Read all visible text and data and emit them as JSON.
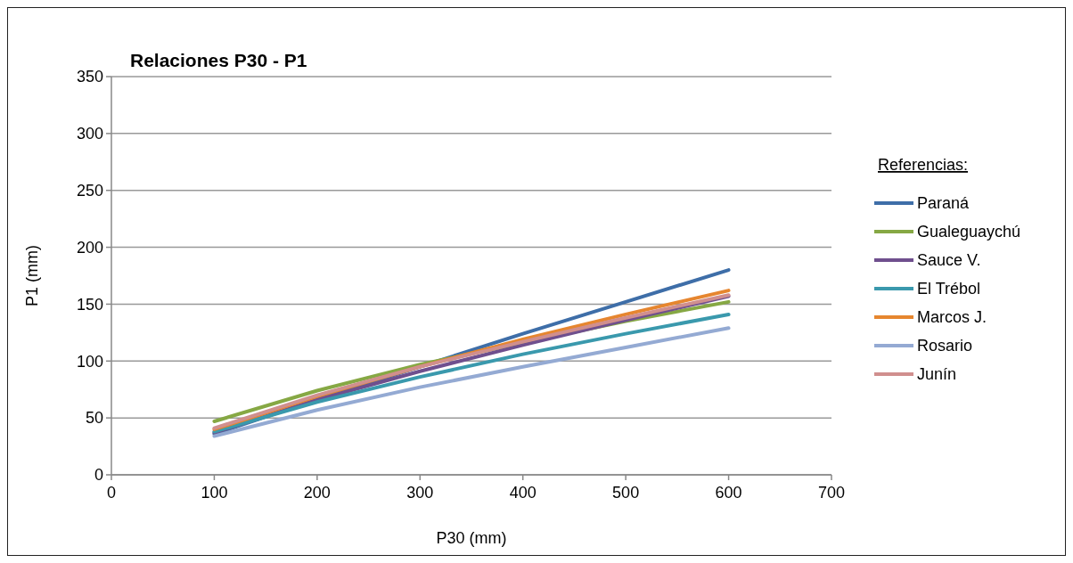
{
  "chart_data": {
    "type": "line",
    "title": "Relaciones P30 - P1",
    "xlabel": "P30 (mm)",
    "ylabel": "P1 (mm)",
    "legend_title": "Referencias:",
    "x": [
      100,
      200,
      300,
      400,
      500,
      600
    ],
    "series": [
      {
        "name": "Paraná",
        "color": "#3e6ea8",
        "values": [
          36,
          66,
          95,
          124,
          152,
          180
        ]
      },
      {
        "name": "Gualeguaychú",
        "color": "#86a844",
        "values": [
          47,
          74,
          97,
          116,
          135,
          152
        ]
      },
      {
        "name": "Sauce V.",
        "color": "#6f4f8e",
        "values": [
          37,
          66,
          91,
          114,
          136,
          157
        ]
      },
      {
        "name": "El Trébol",
        "color": "#3a99ad",
        "values": [
          38,
          64,
          86,
          106,
          124,
          141
        ]
      },
      {
        "name": "Marcos J.",
        "color": "#e6862f",
        "values": [
          40,
          69,
          95,
          119,
          141,
          162
        ]
      },
      {
        "name": "Rosario",
        "color": "#94aad3",
        "values": [
          34,
          57,
          77,
          95,
          112,
          129
        ]
      },
      {
        "name": "Junín",
        "color": "#d08f8e",
        "values": [
          41,
          70,
          95,
          117,
          138,
          158
        ]
      }
    ],
    "xlim": [
      0,
      700
    ],
    "xticks": [
      0,
      100,
      200,
      300,
      400,
      500,
      600,
      700
    ],
    "ylim": [
      0,
      350
    ],
    "yticks": [
      0,
      50,
      100,
      150,
      200,
      250,
      300,
      350
    ],
    "grid": "y",
    "legend": "right",
    "marker": "none",
    "line_style": "solid"
  }
}
